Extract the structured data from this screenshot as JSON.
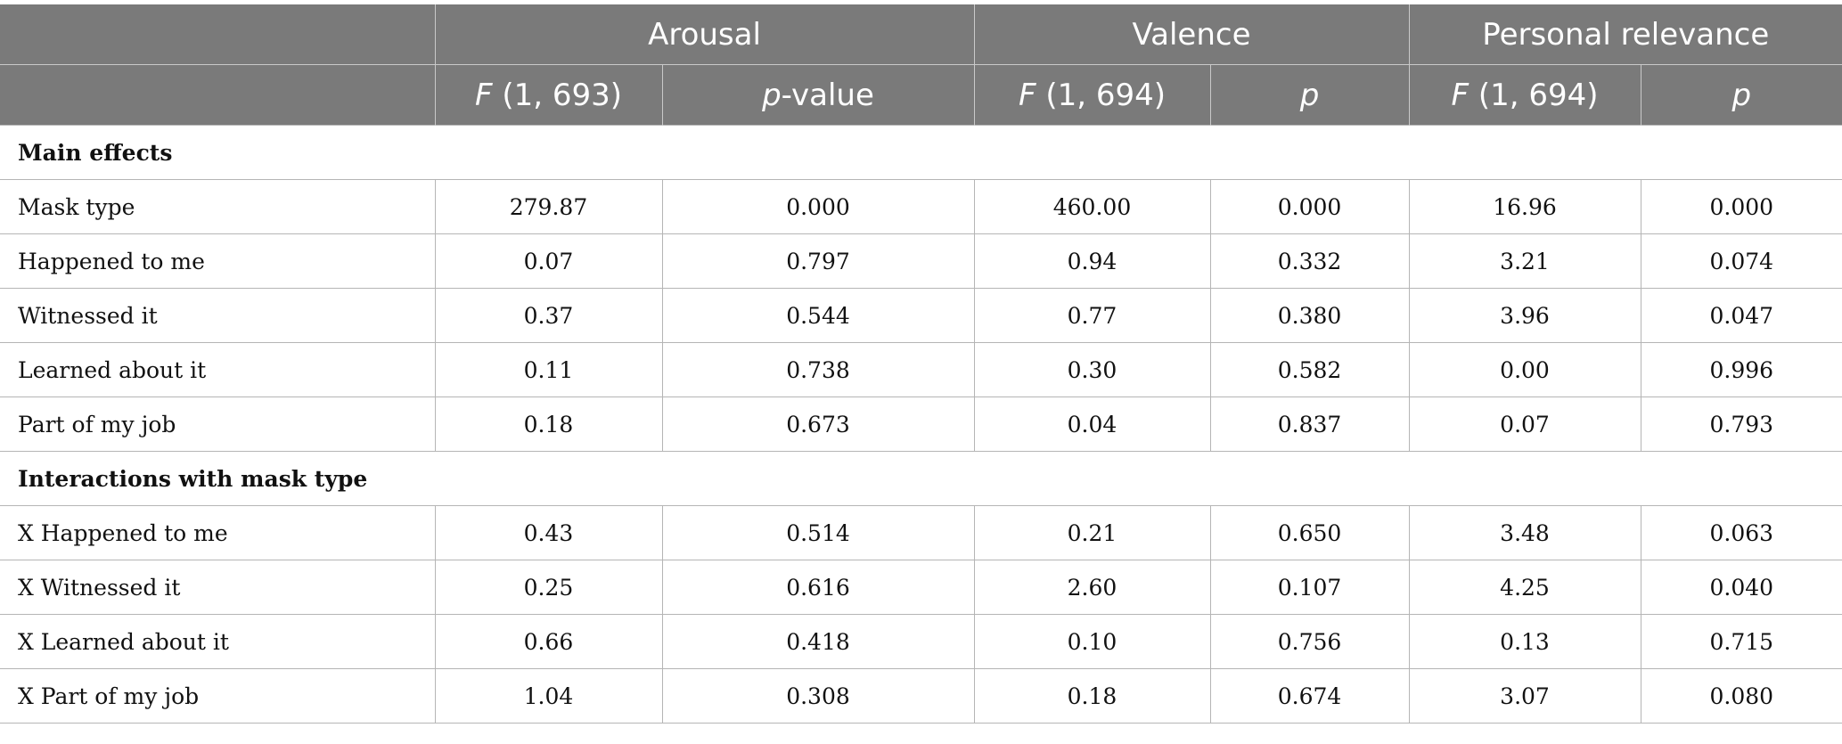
{
  "header": {
    "groups": [
      {
        "label": "Arousal"
      },
      {
        "label": "Valence"
      },
      {
        "label": "Personal relevance"
      }
    ],
    "subheaders": [
      {
        "italic": "F",
        "rest": " (1, 693)"
      },
      {
        "italic": "p",
        "rest": "-value"
      },
      {
        "italic": "F",
        "rest": " (1, 694)"
      },
      {
        "italic": "p",
        "rest": ""
      },
      {
        "italic": "F",
        "rest": " (1, 694)"
      },
      {
        "italic": "p",
        "rest": ""
      }
    ]
  },
  "sections": [
    {
      "title": "Main effects",
      "rows": [
        {
          "label": "Mask type",
          "values": [
            "279.87",
            "0.000",
            "460.00",
            "0.000",
            "16.96",
            "0.000"
          ]
        },
        {
          "label": "Happened to me",
          "values": [
            "0.07",
            "0.797",
            "0.94",
            "0.332",
            "3.21",
            "0.074"
          ]
        },
        {
          "label": "Witnessed it",
          "values": [
            "0.37",
            "0.544",
            "0.77",
            "0.380",
            "3.96",
            "0.047"
          ]
        },
        {
          "label": "Learned about it",
          "values": [
            "0.11",
            "0.738",
            "0.30",
            "0.582",
            "0.00",
            "0.996"
          ]
        },
        {
          "label": "Part of my job",
          "values": [
            "0.18",
            "0.673",
            "0.04",
            "0.837",
            "0.07",
            "0.793"
          ]
        }
      ]
    },
    {
      "title": "Interactions with mask type",
      "rows": [
        {
          "label": "X Happened to me",
          "values": [
            "0.43",
            "0.514",
            "0.21",
            "0.650",
            "3.48",
            "0.063"
          ]
        },
        {
          "label": "X Witnessed it",
          "values": [
            "0.25",
            "0.616",
            "2.60",
            "0.107",
            "4.25",
            "0.040"
          ]
        },
        {
          "label": "X Learned about it",
          "values": [
            "0.66",
            "0.418",
            "0.10",
            "0.756",
            "0.13",
            "0.715"
          ]
        },
        {
          "label": "X Part of my job",
          "values": [
            "1.04",
            "0.308",
            "0.18",
            "0.674",
            "3.07",
            "0.080"
          ]
        }
      ]
    }
  ]
}
